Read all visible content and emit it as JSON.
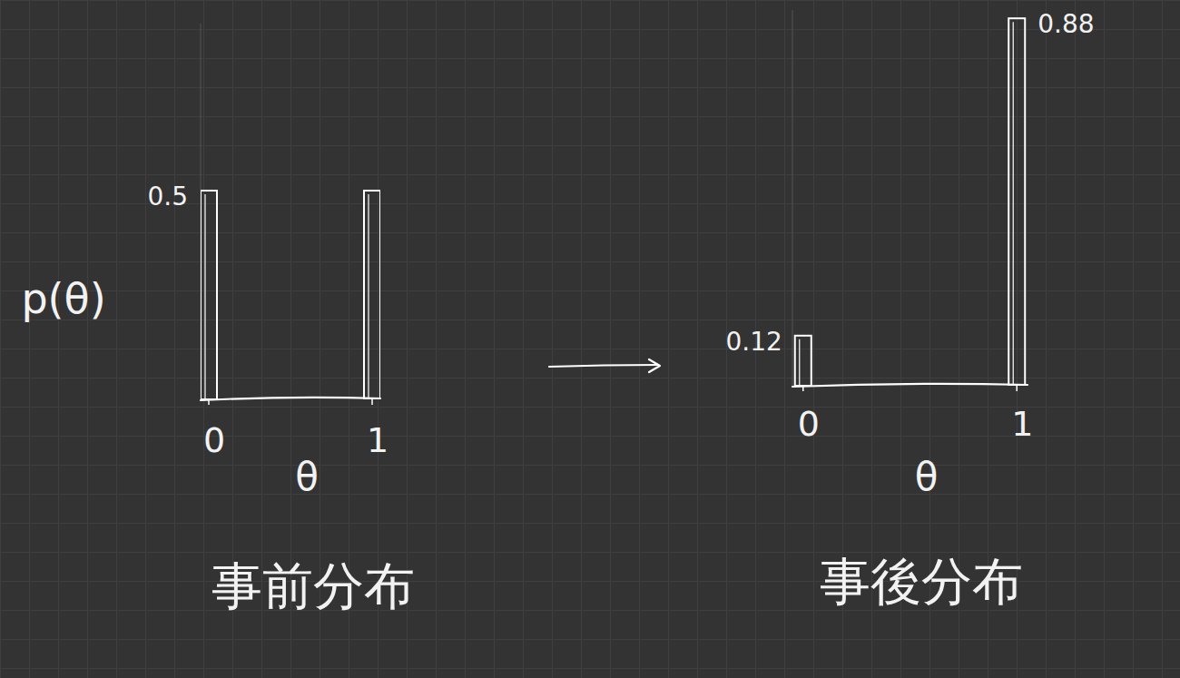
{
  "chart_data": [
    {
      "type": "bar",
      "title": "事前分布",
      "x_label": "θ",
      "y_label": "p(θ)",
      "x": [
        0,
        1
      ],
      "values": [
        0.5,
        0.5
      ],
      "value_labels": [
        "0.5",
        null
      ],
      "data_labels": true,
      "color": "#ffffff",
      "xlim": [
        -0.05,
        1.05
      ],
      "xticks": [
        0,
        1
      ],
      "ylim": [
        0,
        0.9
      ],
      "tick_labels": "x",
      "grid": false
    },
    {
      "type": "bar",
      "title": "事後分布",
      "x_label": "θ",
      "x": [
        0,
        1
      ],
      "values": [
        0.12,
        0.88
      ],
      "value_labels": [
        "0.12",
        "0.88"
      ],
      "data_labels": true,
      "color": "#ffffff",
      "xlim": [
        -0.05,
        1.05
      ],
      "xticks": [
        0,
        1
      ],
      "ylim": [
        0,
        0.9
      ],
      "tick_labels": "x",
      "grid": false
    }
  ]
}
